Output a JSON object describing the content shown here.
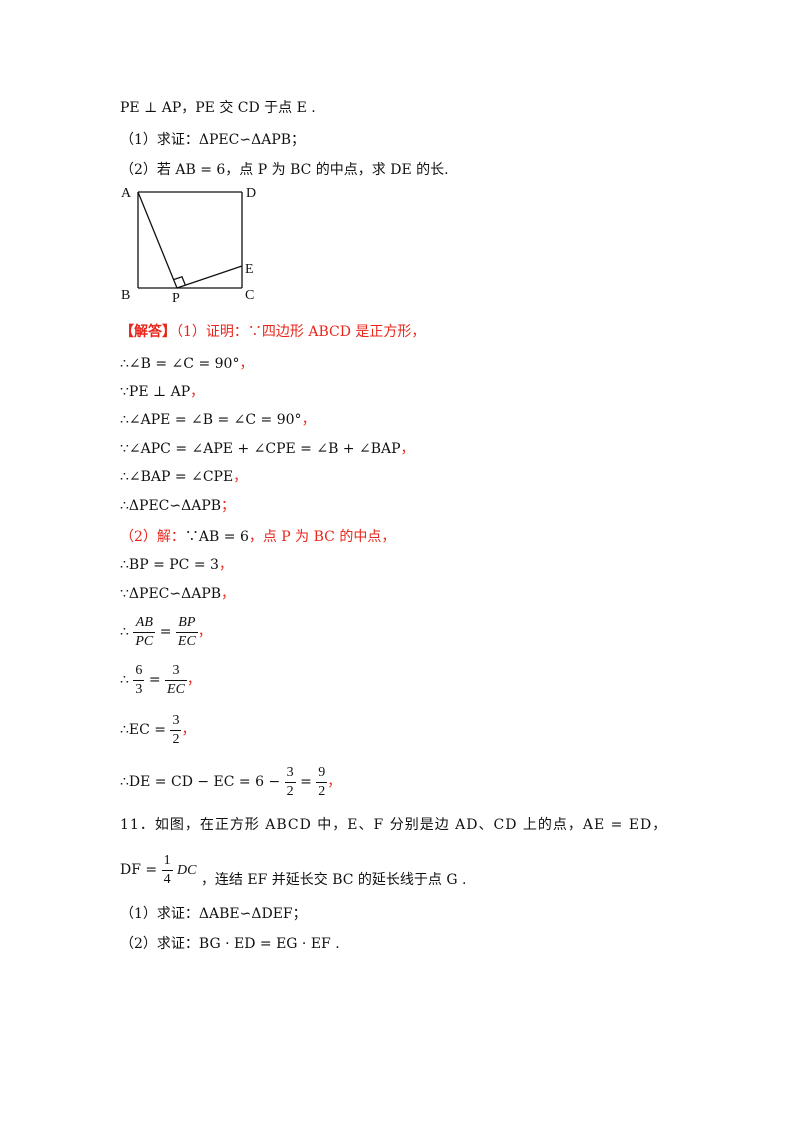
{
  "problem10": {
    "line1": "PE ⊥ AP，PE 交 CD 于点 E .",
    "q1": "（1）求证：ΔPEC∽ΔAPB；",
    "q2": "（2）若 AB = 6，点 P 为 BC 的中点，求 DE 的长."
  },
  "figure": {
    "A": "A",
    "B": "B",
    "C": "C",
    "D": "D",
    "E": "E",
    "P": "P"
  },
  "solution": {
    "label": "【解答】",
    "p1_intro": "（1）证明：∵四边形 ABCD 是正方形，",
    "s1": "∴∠B = ∠C = 90°",
    "s2": "∵PE ⊥ AP",
    "s3": "∴∠APE = ∠B = ∠C = 90°",
    "s4": "∵∠APC = ∠APE + ∠CPE = ∠B + ∠BAP",
    "s5": "∴∠BAP = ∠CPE",
    "s6": "∴ΔPEC∽ΔAPB",
    "p2_intro_a": "（2）解：",
    "p2_intro_b": "∵AB = 6",
    "p2_intro_c": "，点 P 为 BC 的中点，",
    "s7": "∴BP = PC = 3",
    "s8": "∵ΔPEC∽ΔAPB",
    "s9_therefore": "∴",
    "f1_num": "AB",
    "f1_den": "PC",
    "f1_eq": "=",
    "f2_num": "BP",
    "f2_den": "EC",
    "s10_therefore": "∴",
    "f3_num": "6",
    "f3_den": "3",
    "f3_eq": "=",
    "f4_num": "3",
    "f4_den": "EC",
    "s11_pre": "∴EC =",
    "f5_num": "3",
    "f5_den": "2",
    "s12_pre": "∴DE = CD − EC = 6 −",
    "f6_num": "3",
    "f6_den": "2",
    "s12_eq": "=",
    "f7_num": "9",
    "f7_den": "2",
    "comma": "，",
    "semicolon": "；"
  },
  "problem11": {
    "line1": "11．如图，在正方形 ABCD 中，E、F 分别是边 AD、CD 上的点，AE = ED，",
    "line2_pre": "DF =",
    "line2_num": "1",
    "line2_den": "4",
    "line2_after": "DC",
    "line2_rest": "，连结 EF 并延长交 BC 的延长线于点 G .",
    "q1": "（1）求证：ΔABE∽ΔDEF；",
    "q2": "（2）求证：BG · ED = EG · EF ."
  }
}
